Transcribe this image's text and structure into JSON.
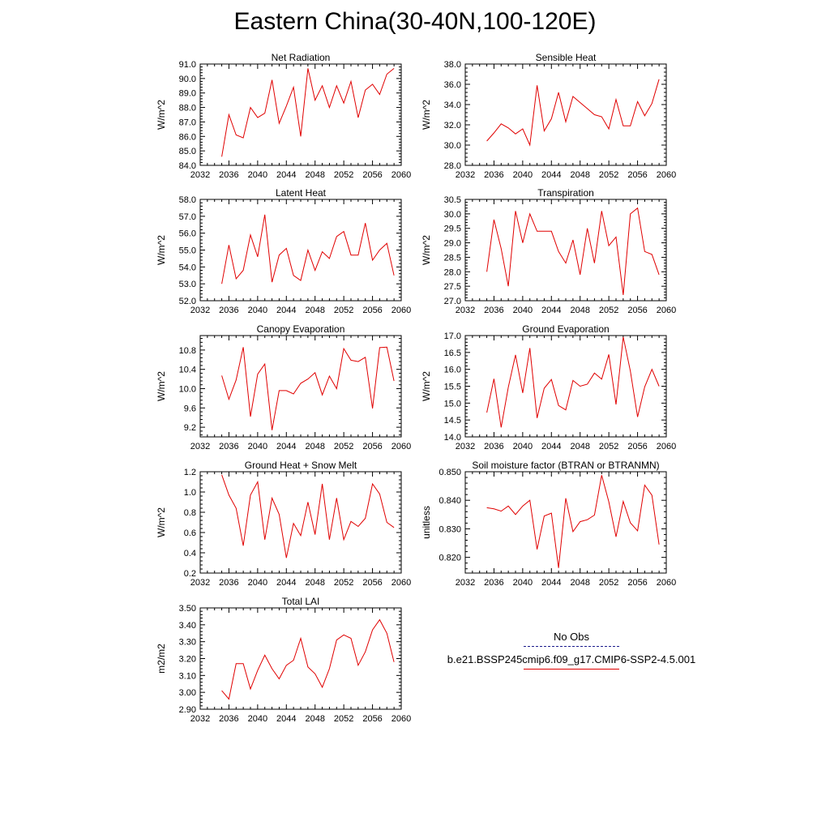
{
  "figure": {
    "title": "Eastern China(30-40N,100-120E)"
  },
  "legend": {
    "obs_label": "No Obs",
    "run_label": "b.e21.BSSP245cmip6.f09_g17.CMIP6-SSP2-4.5.001",
    "obs_color": "#1a1a8c",
    "run_color": "#e00000"
  },
  "chart_data": [
    {
      "type": "line",
      "title": "Net Radiation",
      "ylabel": "W/m^2",
      "xlim": [
        2032,
        2060
      ],
      "ylim": [
        84.0,
        91.0
      ],
      "xticks": [
        "2032",
        "2036",
        "2040",
        "2044",
        "2048",
        "2052",
        "2056",
        "2060"
      ],
      "yticks": [
        "84.0",
        "85.0",
        "86.0",
        "87.0",
        "88.0",
        "89.0",
        "90.0",
        "91.0"
      ],
      "x": [
        2035,
        2036,
        2037,
        2038,
        2039,
        2040,
        2041,
        2042,
        2043,
        2044,
        2045,
        2046,
        2047,
        2048,
        2049,
        2050,
        2051,
        2052,
        2053,
        2054,
        2055,
        2056,
        2057,
        2058,
        2059
      ],
      "series": [
        {
          "color": "#e00000",
          "values": [
            84.6,
            87.5,
            86.1,
            85.9,
            88.0,
            87.3,
            87.6,
            89.9,
            86.9,
            88.1,
            89.4,
            86.0,
            90.7,
            88.5,
            89.5,
            88.0,
            89.5,
            88.3,
            89.8,
            87.3,
            89.2,
            89.6,
            88.9,
            90.3,
            90.7
          ]
        }
      ]
    },
    {
      "type": "line",
      "title": "Sensible Heat",
      "ylabel": "W/m^2",
      "xlim": [
        2032,
        2060
      ],
      "ylim": [
        28.0,
        38.0
      ],
      "xticks": [
        "2032",
        "2036",
        "2040",
        "2044",
        "2048",
        "2052",
        "2056",
        "2060"
      ],
      "yticks": [
        "28.0",
        "30.0",
        "32.0",
        "34.0",
        "36.0",
        "38.0"
      ],
      "x": [
        2035,
        2036,
        2037,
        2038,
        2039,
        2040,
        2041,
        2042,
        2043,
        2044,
        2045,
        2046,
        2047,
        2048,
        2049,
        2050,
        2051,
        2052,
        2053,
        2054,
        2055,
        2056,
        2057,
        2058,
        2059
      ],
      "series": [
        {
          "color": "#e00000",
          "values": [
            30.4,
            31.2,
            32.1,
            31.7,
            31.1,
            31.6,
            30.0,
            35.9,
            31.4,
            32.6,
            35.2,
            32.3,
            34.8,
            34.2,
            33.6,
            33.0,
            32.8,
            31.6,
            34.5,
            31.9,
            31.9,
            34.3,
            32.9,
            34.1,
            36.5
          ]
        }
      ]
    },
    {
      "type": "line",
      "title": "Latent Heat",
      "ylabel": "W/m^2",
      "xlim": [
        2032,
        2060
      ],
      "ylim": [
        52.0,
        58.0
      ],
      "xticks": [
        "2032",
        "2036",
        "2040",
        "2044",
        "2048",
        "2052",
        "2056",
        "2060"
      ],
      "yticks": [
        "52.0",
        "53.0",
        "54.0",
        "55.0",
        "56.0",
        "57.0",
        "58.0"
      ],
      "x": [
        2035,
        2036,
        2037,
        2038,
        2039,
        2040,
        2041,
        2042,
        2043,
        2044,
        2045,
        2046,
        2047,
        2048,
        2049,
        2050,
        2051,
        2052,
        2053,
        2054,
        2055,
        2056,
        2057,
        2058,
        2059
      ],
      "series": [
        {
          "color": "#e00000",
          "values": [
            53.0,
            55.3,
            53.3,
            53.8,
            55.9,
            54.6,
            57.1,
            53.1,
            54.7,
            55.1,
            53.5,
            53.2,
            55.0,
            53.8,
            54.9,
            54.5,
            55.8,
            56.1,
            54.7,
            54.7,
            56.6,
            54.4,
            55.0,
            55.4,
            53.5
          ]
        }
      ]
    },
    {
      "type": "line",
      "title": "Transpiration",
      "ylabel": "W/m^2",
      "xlim": [
        2032,
        2060
      ],
      "ylim": [
        27.0,
        30.5
      ],
      "xticks": [
        "2032",
        "2036",
        "2040",
        "2044",
        "2048",
        "2052",
        "2056",
        "2060"
      ],
      "yticks": [
        "27.0",
        "27.5",
        "28.0",
        "28.5",
        "29.0",
        "29.5",
        "30.0",
        "30.5"
      ],
      "x": [
        2035,
        2036,
        2037,
        2038,
        2039,
        2040,
        2041,
        2042,
        2043,
        2044,
        2045,
        2046,
        2047,
        2048,
        2049,
        2050,
        2051,
        2052,
        2053,
        2054,
        2055,
        2056,
        2057,
        2058,
        2059
      ],
      "series": [
        {
          "color": "#e00000",
          "values": [
            28.0,
            29.8,
            28.8,
            27.5,
            30.1,
            29.0,
            30.0,
            29.4,
            29.4,
            29.4,
            28.7,
            28.3,
            29.1,
            27.9,
            29.5,
            28.3,
            30.1,
            28.9,
            29.2,
            27.2,
            30.0,
            30.2,
            28.7,
            28.6,
            27.9
          ]
        }
      ]
    },
    {
      "type": "line",
      "title": "Canopy Evaporation",
      "ylabel": "W/m^2",
      "xlim": [
        2032,
        2060
      ],
      "ylim": [
        9.0,
        11.1
      ],
      "xticks": [
        "2032",
        "2036",
        "2040",
        "2044",
        "2048",
        "2052",
        "2056",
        "2060"
      ],
      "yticks": [
        "9.2",
        "9.6",
        "10.0",
        "10.4",
        "10.8"
      ],
      "x": [
        2035,
        2036,
        2037,
        2038,
        2039,
        2040,
        2041,
        2042,
        2043,
        2044,
        2045,
        2046,
        2047,
        2048,
        2049,
        2050,
        2051,
        2052,
        2053,
        2054,
        2055,
        2056,
        2057,
        2058,
        2059
      ],
      "series": [
        {
          "color": "#e00000",
          "values": [
            10.27,
            9.78,
            10.18,
            10.86,
            9.42,
            10.3,
            10.51,
            9.14,
            9.96,
            9.96,
            9.89,
            10.11,
            10.2,
            10.33,
            9.87,
            10.26,
            10.0,
            10.83,
            10.59,
            10.56,
            10.65,
            9.59,
            10.85,
            10.86,
            10.16
          ]
        }
      ]
    },
    {
      "type": "line",
      "title": "Ground Evaporation",
      "ylabel": "W/m^2",
      "xlim": [
        2032,
        2060
      ],
      "ylim": [
        14.0,
        17.0
      ],
      "xticks": [
        "2032",
        "2036",
        "2040",
        "2044",
        "2048",
        "2052",
        "2056",
        "2060"
      ],
      "yticks": [
        "14.0",
        "14.5",
        "15.0",
        "15.5",
        "16.0",
        "16.5",
        "17.0"
      ],
      "x": [
        2035,
        2036,
        2037,
        2038,
        2039,
        2040,
        2041,
        2042,
        2043,
        2044,
        2045,
        2046,
        2047,
        2048,
        2049,
        2050,
        2051,
        2052,
        2053,
        2054,
        2055,
        2056,
        2057,
        2058,
        2059
      ],
      "series": [
        {
          "color": "#e00000",
          "values": [
            14.72,
            15.72,
            14.28,
            15.47,
            16.43,
            15.3,
            16.63,
            14.56,
            15.44,
            15.7,
            14.93,
            14.8,
            15.67,
            15.5,
            15.56,
            15.89,
            15.71,
            16.44,
            14.96,
            16.96,
            15.95,
            14.59,
            15.48,
            16.0,
            15.5
          ]
        }
      ]
    },
    {
      "type": "line",
      "title": "Ground Heat + Snow Melt",
      "ylabel": "W/m^2",
      "xlim": [
        2032,
        2060
      ],
      "ylim": [
        0.2,
        1.2
      ],
      "xticks": [
        "2032",
        "2036",
        "2040",
        "2044",
        "2048",
        "2052",
        "2056",
        "2060"
      ],
      "yticks": [
        "0.2",
        "0.4",
        "0.6",
        "0.8",
        "1.0",
        "1.2"
      ],
      "x": [
        2035,
        2036,
        2037,
        2038,
        2039,
        2040,
        2041,
        2042,
        2043,
        2044,
        2045,
        2046,
        2047,
        2048,
        2049,
        2050,
        2051,
        2052,
        2053,
        2054,
        2055,
        2056,
        2057,
        2058,
        2059
      ],
      "series": [
        {
          "color": "#e00000",
          "values": [
            1.17,
            0.97,
            0.84,
            0.47,
            0.97,
            1.1,
            0.53,
            0.94,
            0.78,
            0.35,
            0.69,
            0.57,
            0.9,
            0.58,
            1.08,
            0.53,
            0.94,
            0.53,
            0.71,
            0.66,
            0.74,
            1.08,
            0.98,
            0.7,
            0.65
          ]
        }
      ]
    },
    {
      "type": "line",
      "title": "Soil moisture factor (BTRAN or BTRANMN)",
      "ylabel": "unitless",
      "xlim": [
        2032,
        2060
      ],
      "ylim": [
        0.8145,
        0.85
      ],
      "xticks": [
        "2032",
        "2036",
        "2040",
        "2044",
        "2048",
        "2052",
        "2056",
        "2060"
      ],
      "yticks": [
        "0.820",
        "0.830",
        "0.840",
        "0.850"
      ],
      "x": [
        2035,
        2036,
        2037,
        2038,
        2039,
        2040,
        2041,
        2042,
        2043,
        2044,
        2045,
        2046,
        2047,
        2048,
        2049,
        2050,
        2051,
        2052,
        2053,
        2054,
        2055,
        2056,
        2057,
        2058,
        2059
      ],
      "series": [
        {
          "color": "#e00000",
          "values": [
            0.8374,
            0.837,
            0.8362,
            0.838,
            0.835,
            0.838,
            0.84,
            0.8228,
            0.8345,
            0.8355,
            0.8163,
            0.8407,
            0.829,
            0.8325,
            0.8332,
            0.8348,
            0.8488,
            0.8395,
            0.8272,
            0.8396,
            0.8321,
            0.8293,
            0.8453,
            0.8418,
            0.8245
          ]
        }
      ]
    },
    {
      "type": "line",
      "title": "Total LAI",
      "ylabel": "m2/m2",
      "xlim": [
        2032,
        2060
      ],
      "ylim": [
        2.9,
        3.5
      ],
      "xticks": [
        "2032",
        "2036",
        "2040",
        "2044",
        "2048",
        "2052",
        "2056",
        "2060"
      ],
      "yticks": [
        "2.90",
        "3.00",
        "3.10",
        "3.20",
        "3.30",
        "3.40",
        "3.50"
      ],
      "x": [
        2035,
        2036,
        2037,
        2038,
        2039,
        2040,
        2041,
        2042,
        2043,
        2044,
        2045,
        2046,
        2047,
        2048,
        2049,
        2050,
        2051,
        2052,
        2053,
        2054,
        2055,
        2056,
        2057,
        2058,
        2059
      ],
      "series": [
        {
          "color": "#e00000",
          "values": [
            3.01,
            2.96,
            3.17,
            3.17,
            3.02,
            3.13,
            3.22,
            3.14,
            3.08,
            3.16,
            3.19,
            3.32,
            3.15,
            3.11,
            3.03,
            3.14,
            3.31,
            3.34,
            3.32,
            3.16,
            3.24,
            3.37,
            3.43,
            3.35,
            3.18
          ]
        }
      ]
    }
  ]
}
